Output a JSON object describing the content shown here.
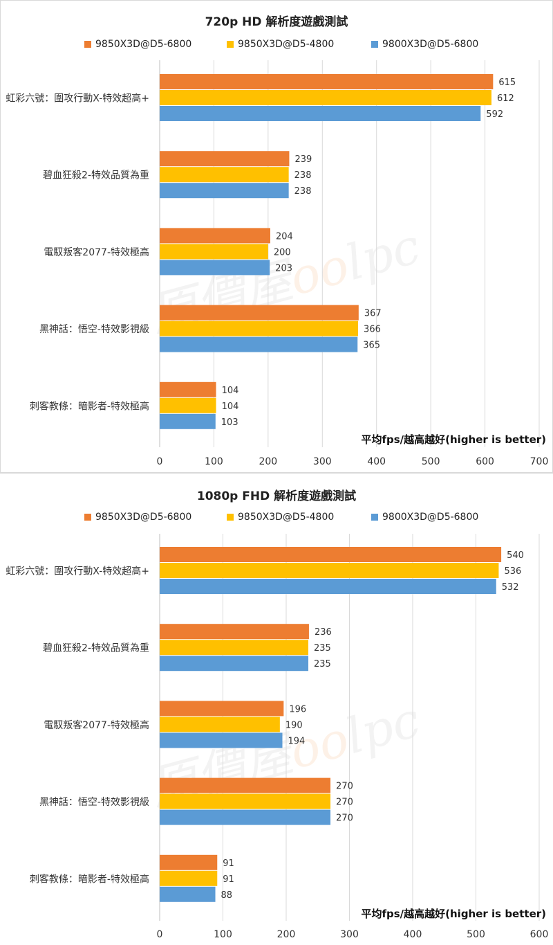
{
  "chart_data": [
    {
      "type": "bar",
      "orientation": "horizontal",
      "title": "720p HD 解析度遊戲測試",
      "xlabel": "平均fps/越高越好(higher is better)",
      "categories": [
        "虹彩六號：圍攻行動X-特效超高+",
        "碧血狂殺2-特效品質為重",
        "電馭叛客2077-特效極高",
        "黑神話：悟空-特效影視級",
        "刺客教條：暗影者-特效極高"
      ],
      "series": [
        {
          "name": "9850X3D@D5-6800",
          "color": "#ED7D31",
          "values": [
            615,
            239,
            204,
            367,
            104
          ]
        },
        {
          "name": "9850X3D@D5-4800",
          "color": "#FFC000",
          "values": [
            612,
            238,
            200,
            366,
            104
          ]
        },
        {
          "name": "9800X3D@D5-6800",
          "color": "#5B9BD5",
          "values": [
            592,
            238,
            203,
            365,
            103
          ]
        }
      ],
      "xlim": [
        0,
        700
      ],
      "ticks": [
        "0",
        "100",
        "200",
        "300",
        "400",
        "500",
        "600",
        "700"
      ],
      "grid": true,
      "legend_position": "top"
    },
    {
      "type": "bar",
      "orientation": "horizontal",
      "title": "1080p FHD 解析度遊戲測試",
      "xlabel": "平均fps/越高越好(higher is better)",
      "categories": [
        "虹彩六號：圍攻行動X-特效超高+",
        "碧血狂殺2-特效品質為重",
        "電馭叛客2077-特效極高",
        "黑神話：悟空-特效影視級",
        "刺客教條：暗影者-特效極高"
      ],
      "series": [
        {
          "name": "9850X3D@D5-6800",
          "color": "#ED7D31",
          "values": [
            540,
            236,
            196,
            270,
            91
          ]
        },
        {
          "name": "9850X3D@D5-4800",
          "color": "#FFC000",
          "values": [
            536,
            235,
            190,
            270,
            91
          ]
        },
        {
          "name": "9800X3D@D5-6800",
          "color": "#5B9BD5",
          "values": [
            532,
            235,
            194,
            270,
            88
          ]
        }
      ],
      "xlim": [
        0,
        600
      ],
      "ticks": [
        "0",
        "100",
        "200",
        "300",
        "400",
        "500",
        "600"
      ],
      "grid": true,
      "legend_position": "top"
    }
  ],
  "watermark": {
    "prefix": "原價屋",
    "o": "oo",
    "suffix": "lpc"
  }
}
